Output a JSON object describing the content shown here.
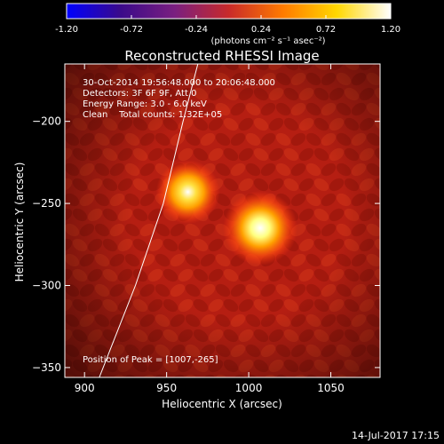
{
  "colorbar": {
    "ticks": [
      "-1.20",
      "-0.72",
      "-0.24",
      "0.24",
      "0.72",
      "1.20"
    ],
    "tick_values": [
      -1.2,
      -0.72,
      -0.24,
      0.24,
      0.72,
      1.2
    ],
    "unit_label": "(photons cm⁻² s⁻¹ asec⁻²)",
    "colors": [
      "#0000ff",
      "#3a0a8a",
      "#7a1f80",
      "#c82a2a",
      "#ff7a00",
      "#ffd700",
      "#ffffff"
    ]
  },
  "chart_data": {
    "type": "heatmap",
    "title": "Reconstructed RHESSI Image",
    "xlabel": "Heliocentric X (arcsec)",
    "ylabel": "Heliocentric Y (arcsec)",
    "xlim": [
      888,
      1080
    ],
    "ylim": [
      -356,
      -165
    ],
    "xticks": [
      900,
      950,
      1000,
      1050
    ],
    "yticks": [
      -200,
      -250,
      -300,
      -350
    ],
    "xtick_labels": [
      "900",
      "950",
      "1000",
      "1050"
    ],
    "ytick_labels": [
      "−200",
      "−250",
      "−300",
      "−350"
    ],
    "info_lines": [
      "30-Oct-2014 19:56:48.000 to 20:06:48.000",
      "Detectors: 3F 6F 9F, Att 0",
      "Energy Range: 3.0 - 6.0 keV",
      "Clean    Total counts: 1.32E+05"
    ],
    "peak_label": "Position of Peak = [1007,-265]",
    "sources": [
      {
        "x": 1007,
        "y": -265,
        "intensity": 1.2
      },
      {
        "x": 963,
        "y": -243,
        "intensity": 0.95
      }
    ],
    "limb_points": [
      [
        969,
        -165
      ],
      [
        960,
        -200
      ],
      [
        948,
        -250
      ],
      [
        931,
        -300
      ],
      [
        909,
        -356
      ]
    ],
    "background_color": "#b51e12"
  },
  "footer": {
    "date": "14-Jul-2017 17:15"
  }
}
